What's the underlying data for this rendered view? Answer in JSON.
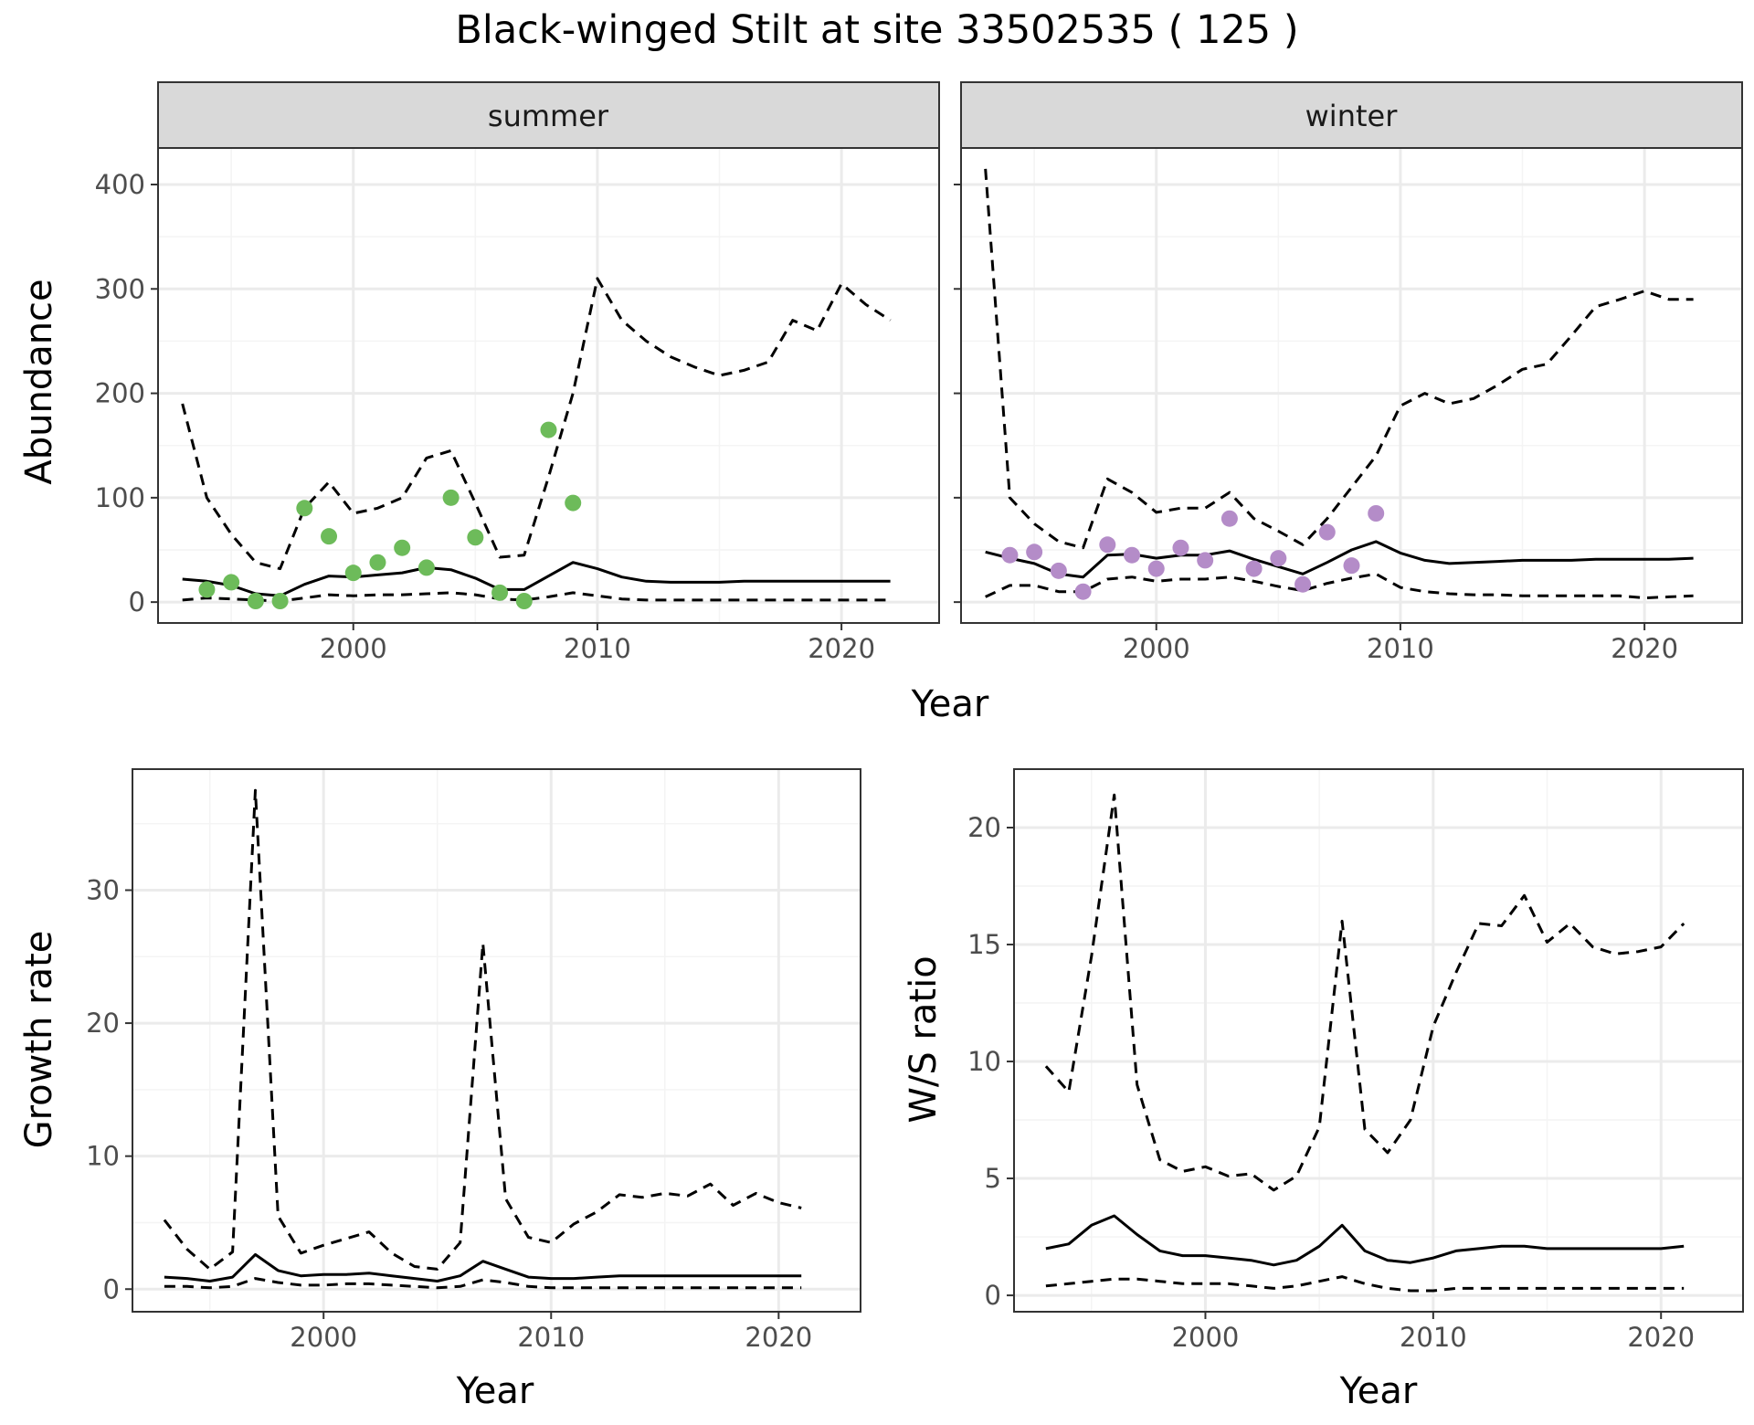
{
  "title": "Black-winged Stilt at site 33502535 ( 125 )",
  "colors": {
    "summer_points": "#6dbb5a",
    "winter_points": "#b48cc8",
    "line": "#000000",
    "strip_fill": "#d9d9d9",
    "grid_major": "#ebebeb",
    "grid_minor": "#f4f4f4"
  },
  "chart_data": [
    {
      "type": "line",
      "facet_title": "summer",
      "xlabel": "Year",
      "ylabel": "Abundance",
      "xlim": [
        1992,
        2024
      ],
      "ylim": [
        -20,
        435
      ],
      "xticks": [
        2000,
        2010,
        2020
      ],
      "yticks": [
        0,
        100,
        200,
        300,
        400
      ],
      "grid": true,
      "series": [
        {
          "role": "estimate",
          "style": "solid",
          "x": [
            1993,
            1994,
            1995,
            1996,
            1997,
            1998,
            1999,
            2000,
            2001,
            2002,
            2003,
            2004,
            2005,
            2006,
            2007,
            2008,
            2009,
            2010,
            2011,
            2012,
            2013,
            2014,
            2015,
            2016,
            2017,
            2018,
            2019,
            2020,
            2021,
            2022
          ],
          "values": [
            22,
            20,
            16,
            8,
            6,
            17,
            25,
            24,
            26,
            28,
            33,
            31,
            23,
            12,
            12,
            25,
            38,
            32,
            24,
            20,
            19,
            19,
            19,
            20,
            20,
            20,
            20,
            20,
            20,
            20
          ]
        },
        {
          "role": "upper",
          "style": "dashed",
          "x": [
            1993,
            1994,
            1995,
            1996,
            1997,
            1998,
            1999,
            2000,
            2001,
            2002,
            2003,
            2004,
            2005,
            2006,
            2007,
            2008,
            2009,
            2010,
            2011,
            2012,
            2013,
            2014,
            2015,
            2016,
            2017,
            2018,
            2019,
            2020,
            2021,
            2022
          ],
          "values": [
            190,
            100,
            65,
            38,
            32,
            90,
            115,
            85,
            90,
            100,
            138,
            145,
            95,
            43,
            45,
            120,
            200,
            310,
            270,
            250,
            235,
            225,
            217,
            222,
            230,
            270,
            260,
            305,
            285,
            270
          ]
        },
        {
          "role": "lower",
          "style": "dashed",
          "x": [
            1993,
            1994,
            1995,
            1996,
            1997,
            1998,
            1999,
            2000,
            2001,
            2002,
            2003,
            2004,
            2005,
            2006,
            2007,
            2008,
            2009,
            2010,
            2011,
            2012,
            2013,
            2014,
            2015,
            2016,
            2017,
            2018,
            2019,
            2020,
            2021,
            2022
          ],
          "values": [
            2,
            4,
            3,
            2,
            1,
            4,
            7,
            6,
            7,
            7,
            8,
            9,
            7,
            3,
            2,
            5,
            9,
            6,
            3,
            2,
            2,
            2,
            2,
            2,
            2,
            2,
            2,
            2,
            2,
            2
          ]
        },
        {
          "role": "observed",
          "style": "points",
          "x": [
            1994,
            1995,
            1996,
            1997,
            1998,
            1999,
            2000,
            2001,
            2002,
            2003,
            2004,
            2005,
            2006,
            2007,
            2008,
            2009
          ],
          "values": [
            12,
            19,
            1,
            1,
            90,
            63,
            28,
            38,
            52,
            33,
            100,
            62,
            9,
            1,
            165,
            95
          ]
        }
      ]
    },
    {
      "type": "line",
      "facet_title": "winter",
      "xlabel": "Year",
      "ylabel": "Abundance",
      "xlim": [
        1992,
        2024
      ],
      "ylim": [
        -20,
        435
      ],
      "xticks": [
        2000,
        2010,
        2020
      ],
      "yticks": [
        0,
        100,
        200,
        300,
        400
      ],
      "grid": true,
      "series": [
        {
          "role": "estimate",
          "style": "solid",
          "x": [
            1993,
            1994,
            1995,
            1996,
            1997,
            1998,
            1999,
            2000,
            2001,
            2002,
            2003,
            2004,
            2005,
            2006,
            2007,
            2008,
            2009,
            2010,
            2011,
            2012,
            2013,
            2014,
            2015,
            2016,
            2017,
            2018,
            2019,
            2020,
            2021,
            2022
          ],
          "values": [
            48,
            42,
            37,
            27,
            24,
            45,
            46,
            42,
            45,
            45,
            49,
            41,
            34,
            27,
            38,
            50,
            58,
            47,
            40,
            37,
            38,
            39,
            40,
            40,
            40,
            41,
            41,
            41,
            41,
            42
          ]
        },
        {
          "role": "upper",
          "style": "dashed",
          "x": [
            1993,
            1994,
            1995,
            1996,
            1997,
            1998,
            1999,
            2000,
            2001,
            2002,
            2003,
            2004,
            2005,
            2006,
            2007,
            2008,
            2009,
            2010,
            2011,
            2012,
            2013,
            2014,
            2015,
            2016,
            2017,
            2018,
            2019,
            2020,
            2021,
            2022
          ],
          "values": [
            415,
            100,
            75,
            58,
            52,
            118,
            105,
            86,
            90,
            90,
            105,
            80,
            68,
            55,
            80,
            110,
            140,
            188,
            200,
            190,
            195,
            208,
            223,
            228,
            255,
            283,
            290,
            298,
            290,
            290
          ]
        },
        {
          "role": "lower",
          "style": "dashed",
          "x": [
            1993,
            1994,
            1995,
            1996,
            1997,
            1998,
            1999,
            2000,
            2001,
            2002,
            2003,
            2004,
            2005,
            2006,
            2007,
            2008,
            2009,
            2010,
            2011,
            2012,
            2013,
            2014,
            2015,
            2016,
            2017,
            2018,
            2019,
            2020,
            2021,
            2022
          ],
          "values": [
            5,
            16,
            16,
            10,
            10,
            22,
            24,
            20,
            22,
            22,
            24,
            20,
            15,
            11,
            18,
            23,
            27,
            14,
            10,
            8,
            7,
            7,
            6,
            6,
            6,
            6,
            6,
            4,
            5,
            6
          ]
        },
        {
          "role": "observed",
          "style": "points",
          "x": [
            1994,
            1995,
            1996,
            1997,
            1998,
            1999,
            2000,
            2001,
            2002,
            2003,
            2004,
            2005,
            2006,
            2007,
            2008,
            2009
          ],
          "values": [
            45,
            48,
            30,
            10,
            55,
            45,
            32,
            52,
            40,
            80,
            32,
            42,
            17,
            67,
            35,
            85
          ]
        }
      ]
    },
    {
      "type": "line",
      "xlabel": "Year",
      "ylabel": "Growth rate",
      "xlim": [
        1991.6,
        2023.6
      ],
      "ylim": [
        -1.7,
        39.1
      ],
      "xticks": [
        2000,
        2010,
        2020
      ],
      "yticks": [
        0,
        10,
        20,
        30
      ],
      "grid": true,
      "series": [
        {
          "role": "estimate",
          "style": "solid",
          "x": [
            1993,
            1994,
            1995,
            1996,
            1997,
            1998,
            1999,
            2000,
            2001,
            2002,
            2003,
            2004,
            2005,
            2006,
            2007,
            2008,
            2009,
            2010,
            2011,
            2012,
            2013,
            2014,
            2015,
            2016,
            2017,
            2018,
            2019,
            2020,
            2021
          ],
          "values": [
            0.9,
            0.8,
            0.6,
            0.9,
            2.6,
            1.4,
            1.0,
            1.1,
            1.1,
            1.2,
            1.0,
            0.8,
            0.6,
            1.0,
            2.1,
            1.5,
            0.9,
            0.8,
            0.8,
            0.9,
            1.0,
            1.0,
            1.0,
            1.0,
            1.0,
            1.0,
            1.0,
            1.0,
            1.0
          ]
        },
        {
          "role": "upper",
          "style": "dashed",
          "x": [
            1993,
            1994,
            1995,
            1996,
            1997,
            1998,
            1999,
            2000,
            2001,
            2002,
            2003,
            2004,
            2005,
            2006,
            2007,
            2008,
            2009,
            2010,
            2011,
            2012,
            2013,
            2014,
            2015,
            2016,
            2017,
            2018,
            2019,
            2020,
            2021
          ],
          "values": [
            5.2,
            3.0,
            1.5,
            2.8,
            37.5,
            5.5,
            2.7,
            3.3,
            3.8,
            4.3,
            2.7,
            1.7,
            1.5,
            3.5,
            26.0,
            6.8,
            3.9,
            3.5,
            4.9,
            5.8,
            7.1,
            6.9,
            7.2,
            7.0,
            7.9,
            6.3,
            7.2,
            6.5,
            6.1
          ]
        },
        {
          "role": "lower",
          "style": "dashed",
          "x": [
            1993,
            1994,
            1995,
            1996,
            1997,
            1998,
            1999,
            2000,
            2001,
            2002,
            2003,
            2004,
            2005,
            2006,
            2007,
            2008,
            2009,
            2010,
            2011,
            2012,
            2013,
            2014,
            2015,
            2016,
            2017,
            2018,
            2019,
            2020,
            2021
          ],
          "values": [
            0.2,
            0.2,
            0.1,
            0.2,
            0.8,
            0.5,
            0.3,
            0.3,
            0.4,
            0.4,
            0.3,
            0.2,
            0.1,
            0.2,
            0.7,
            0.5,
            0.2,
            0.1,
            0.1,
            0.1,
            0.1,
            0.1,
            0.1,
            0.1,
            0.1,
            0.1,
            0.1,
            0.1,
            0.1
          ]
        }
      ]
    },
    {
      "type": "line",
      "xlabel": "Year",
      "ylabel": "W/S ratio",
      "xlim": [
        1991.6,
        2023.6
      ],
      "ylim": [
        -0.7,
        22.5
      ],
      "xticks": [
        2000,
        2010,
        2020
      ],
      "yticks": [
        0,
        5,
        10,
        15,
        20
      ],
      "grid": true,
      "series": [
        {
          "role": "estimate",
          "style": "solid",
          "x": [
            1993,
            1994,
            1995,
            1996,
            1997,
            1998,
            1999,
            2000,
            2001,
            2002,
            2003,
            2004,
            2005,
            2006,
            2007,
            2008,
            2009,
            2010,
            2011,
            2012,
            2013,
            2014,
            2015,
            2016,
            2017,
            2018,
            2019,
            2020,
            2021
          ],
          "values": [
            2.0,
            2.2,
            3.0,
            3.4,
            2.6,
            1.9,
            1.7,
            1.7,
            1.6,
            1.5,
            1.3,
            1.5,
            2.1,
            3.0,
            1.9,
            1.5,
            1.4,
            1.6,
            1.9,
            2.0,
            2.1,
            2.1,
            2.0,
            2.0,
            2.0,
            2.0,
            2.0,
            2.0,
            2.1
          ]
        },
        {
          "role": "upper",
          "style": "dashed",
          "x": [
            1993,
            1994,
            1995,
            1996,
            1997,
            1998,
            1999,
            2000,
            2001,
            2002,
            2003,
            2004,
            2005,
            2006,
            2007,
            2008,
            2009,
            2010,
            2011,
            2012,
            2013,
            2014,
            2015,
            2016,
            2017,
            2018,
            2019,
            2020,
            2021
          ],
          "values": [
            9.8,
            8.7,
            14.5,
            21.4,
            9.0,
            5.8,
            5.3,
            5.5,
            5.1,
            5.2,
            4.5,
            5.1,
            7.2,
            16.0,
            7.1,
            6.1,
            7.5,
            11.5,
            13.8,
            15.9,
            15.8,
            17.1,
            15.1,
            15.9,
            14.9,
            14.6,
            14.7,
            14.9,
            15.9
          ]
        },
        {
          "role": "lower",
          "style": "dashed",
          "x": [
            1993,
            1994,
            1995,
            1996,
            1997,
            1998,
            1999,
            2000,
            2001,
            2002,
            2003,
            2004,
            2005,
            2006,
            2007,
            2008,
            2009,
            2010,
            2011,
            2012,
            2013,
            2014,
            2015,
            2016,
            2017,
            2018,
            2019,
            2020,
            2021
          ],
          "values": [
            0.4,
            0.5,
            0.6,
            0.7,
            0.7,
            0.6,
            0.5,
            0.5,
            0.5,
            0.4,
            0.3,
            0.4,
            0.6,
            0.8,
            0.5,
            0.3,
            0.2,
            0.2,
            0.3,
            0.3,
            0.3,
            0.3,
            0.3,
            0.3,
            0.3,
            0.3,
            0.3,
            0.3,
            0.3
          ]
        }
      ]
    }
  ]
}
